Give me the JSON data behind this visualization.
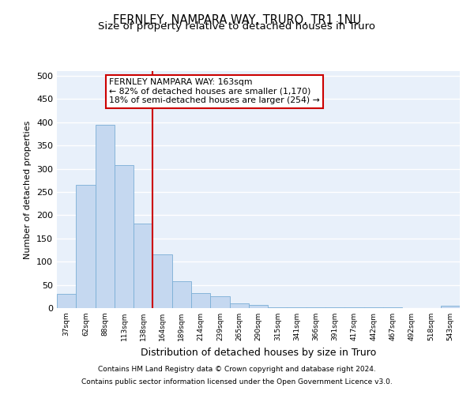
{
  "title": "FERNLEY, NAMPARA WAY, TRURO, TR1 1NU",
  "subtitle": "Size of property relative to detached houses in Truro",
  "xlabel": "Distribution of detached houses by size in Truro",
  "ylabel": "Number of detached properties",
  "categories": [
    "37sqm",
    "62sqm",
    "88sqm",
    "113sqm",
    "138sqm",
    "164sqm",
    "189sqm",
    "214sqm",
    "239sqm",
    "265sqm",
    "290sqm",
    "315sqm",
    "341sqm",
    "366sqm",
    "391sqm",
    "417sqm",
    "442sqm",
    "467sqm",
    "492sqm",
    "518sqm",
    "543sqm"
  ],
  "values": [
    30,
    265,
    395,
    308,
    182,
    115,
    58,
    32,
    25,
    11,
    6,
    2,
    1,
    1,
    1,
    1,
    1,
    1,
    0,
    0,
    5
  ],
  "bar_color": "#c5d8f0",
  "bar_edge_color": "#7aaed6",
  "vline_color": "#cc0000",
  "annotation_line1": "FERNLEY NAMPARA WAY: 163sqm",
  "annotation_line2": "← 82% of detached houses are smaller (1,170)",
  "annotation_line3": "18% of semi-detached houses are larger (254) →",
  "annotation_box_color": "#cc0000",
  "ylim": [
    0,
    510
  ],
  "yticks": [
    0,
    50,
    100,
    150,
    200,
    250,
    300,
    350,
    400,
    450,
    500
  ],
  "footer_line1": "Contains HM Land Registry data © Crown copyright and database right 2024.",
  "footer_line2": "Contains public sector information licensed under the Open Government Licence v3.0.",
  "bg_color": "#e8f0fa",
  "grid_color": "#ffffff",
  "title_fontsize": 10.5,
  "subtitle_fontsize": 9.5,
  "vline_xindex": 5
}
